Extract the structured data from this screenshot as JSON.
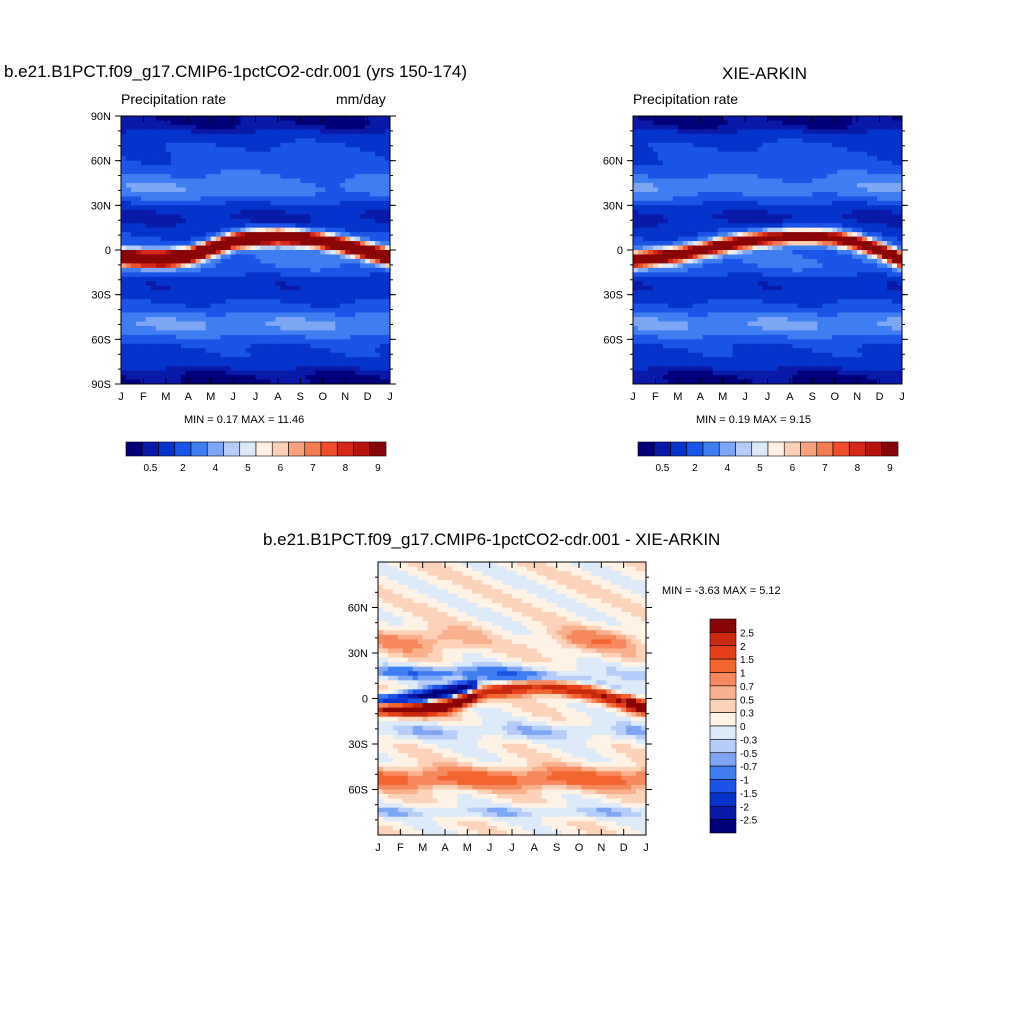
{
  "colors": {
    "precip_palette": [
      "#00007a",
      "#0a1aa8",
      "#0533cc",
      "#1a55e8",
      "#3f7ef0",
      "#7ea6f4",
      "#b5cdf8",
      "#dceaf9",
      "#fff0e3",
      "#fcd0b7",
      "#f8a27e",
      "#f47a52",
      "#ee4f2a",
      "#d6281a",
      "#b4130e",
      "#8a0505"
    ],
    "diff_palette": [
      "#00007a",
      "#0a1aa8",
      "#0533cc",
      "#1a55e8",
      "#3f7ef0",
      "#7ea6f4",
      "#b5cdf8",
      "#dceaf9",
      "#fff3e6",
      "#fcd3b9",
      "#f9b08c",
      "#f7895e",
      "#f3652f",
      "#e6401a",
      "#c92a0e",
      "#8a0505"
    ]
  },
  "panels": {
    "model": {
      "title": "b.e21.B1PCT.f09_g17.CMIP6-1pctCO2-cdr.001 (yrs 150-174)",
      "left_label": "Precipitation rate",
      "right_label": "mm/day",
      "stats": "MIN =   0.17 MAX =   11.46"
    },
    "obs": {
      "title": "XIE-ARKIN",
      "left_label": "Precipitation rate",
      "right_label": "",
      "stats": "MIN =   0.19 MAX =   9.15"
    },
    "diff": {
      "title": "b.e21.B1PCT.f09_g17.CMIP6-1pctCO2-cdr.001 - XIE-ARKIN",
      "stats": "MIN =  -3.63 MAX =   5.12"
    }
  },
  "chart_data": [
    {
      "type": "heatmap",
      "title": "b.e21.B1PCT.f09_g17.CMIP6-1pctCO2-cdr.001 (yrs 150-174)",
      "variable": "Precipitation rate",
      "units": "mm/day",
      "x_ticks": [
        "J",
        "F",
        "M",
        "A",
        "M",
        "J",
        "J",
        "A",
        "S",
        "O",
        "N",
        "D",
        "J"
      ],
      "y_ticks": [
        "90N",
        "60N",
        "30N",
        "0",
        "30S",
        "60S",
        "90S"
      ],
      "ylim": [
        -90,
        90
      ],
      "min": 0.17,
      "max": 11.46,
      "colorbar_levels": [
        "0.5",
        "2",
        "4",
        "5",
        "6",
        "7",
        "8",
        "9"
      ],
      "itcz_lat": [
        -5,
        -6,
        -6,
        -4,
        1,
        6,
        8,
        9,
        8,
        6,
        3,
        -1,
        -5
      ]
    },
    {
      "type": "heatmap",
      "title": "XIE-ARKIN",
      "variable": "Precipitation rate",
      "x_ticks": [
        "J",
        "F",
        "M",
        "A",
        "M",
        "J",
        "J",
        "A",
        "S",
        "O",
        "N",
        "D",
        "J"
      ],
      "y_ticks": [
        "60N",
        "30N",
        "0",
        "30S",
        "60S"
      ],
      "ylim": [
        -90,
        90
      ],
      "min": 0.19,
      "max": 9.15,
      "colorbar_levels": [
        "0.5",
        "2",
        "4",
        "5",
        "6",
        "7",
        "8",
        "9"
      ],
      "itcz_lat": [
        -7,
        -5,
        -3,
        0,
        3,
        6,
        8,
        9,
        9,
        8,
        5,
        0,
        -7
      ]
    },
    {
      "type": "heatmap",
      "title": "b.e21.B1PCT.f09_g17.CMIP6-1pctCO2-cdr.001 - XIE-ARKIN",
      "x_ticks": [
        "J",
        "F",
        "M",
        "A",
        "M",
        "J",
        "J",
        "A",
        "S",
        "O",
        "N",
        "D",
        "J"
      ],
      "y_ticks": [
        "60N",
        "30N",
        "0",
        "30S",
        "60S"
      ],
      "ylim": [
        -90,
        90
      ],
      "min": -3.63,
      "max": 5.12,
      "colorbar_levels": [
        "2.5",
        "2",
        "1.5",
        "1",
        "0.7",
        "0.5",
        "0.3",
        "0",
        "-0.3",
        "-0.5",
        "-0.7",
        "-1",
        "-1.5",
        "-2",
        "-2.5"
      ]
    }
  ]
}
